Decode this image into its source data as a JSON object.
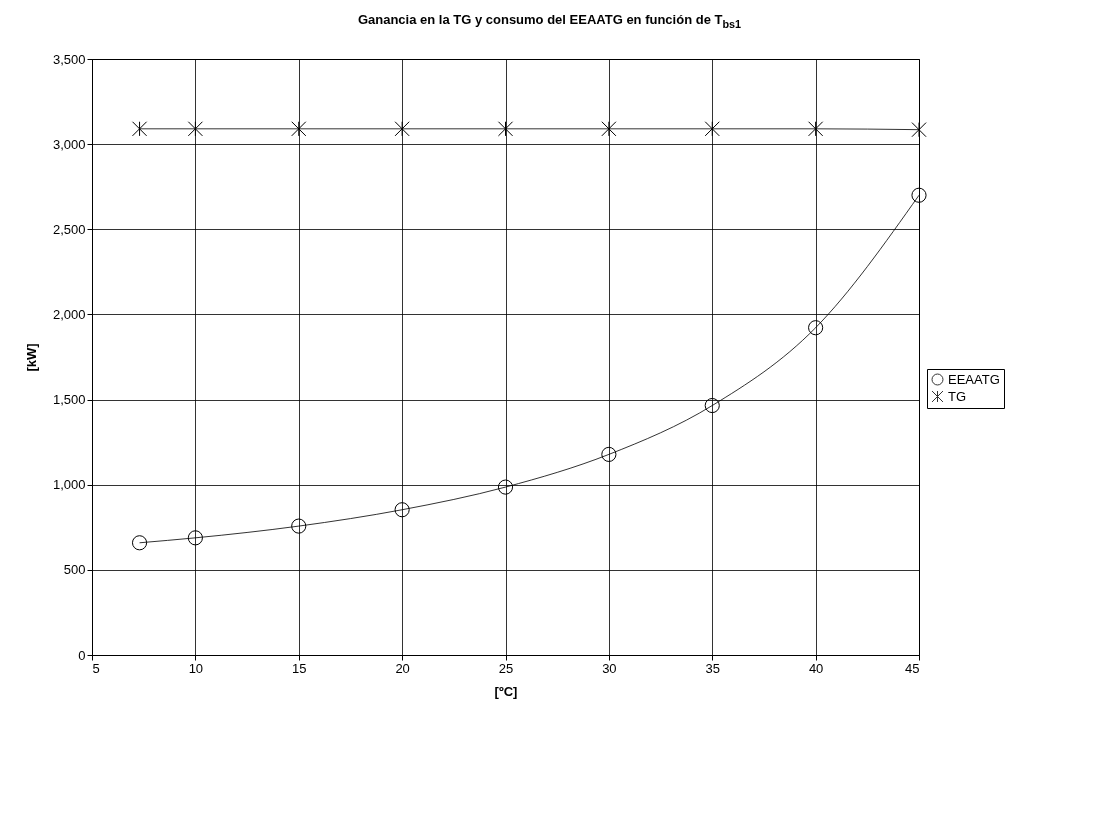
{
  "chart_data": {
    "type": "line",
    "title": "Ganancia en la TG y consumo del EEAATG en función de T$_{bs1}$",
    "xlabel": "[ºC]",
    "ylabel": "[kW]",
    "x": [
      7.3,
      10,
      15,
      20,
      25,
      30,
      35,
      40,
      45
    ],
    "series": [
      {
        "name": "EEAATG",
        "color": "#000000",
        "marker": "circle",
        "values": [
          659,
          688,
          757,
          853,
          986,
          1178,
          1465,
          1922,
          2700
        ]
      },
      {
        "name": "TG",
        "color": "#000000",
        "marker": "cross",
        "values": [
          3090,
          3090,
          3090,
          3090,
          3090,
          3090,
          3090,
          3090,
          3085
        ]
      }
    ],
    "xlim": [
      5,
      45
    ],
    "xticks": [
      5,
      10,
      15,
      20,
      25,
      30,
      35,
      40,
      45
    ],
    "ylim": [
      0,
      3500
    ],
    "yticks": [
      0,
      500,
      {
        "value": 1000,
        "label": "1,000"
      },
      {
        "value": 1500,
        "label": "1,500"
      },
      {
        "value": 2000,
        "label": "2,000"
      },
      {
        "value": 2500,
        "label": "2,500"
      },
      {
        "value": 3000,
        "label": "3,000"
      },
      {
        "value": 3500,
        "label": "3,500"
      }
    ],
    "grid": true,
    "legend": "right",
    "line_style": "solid"
  }
}
